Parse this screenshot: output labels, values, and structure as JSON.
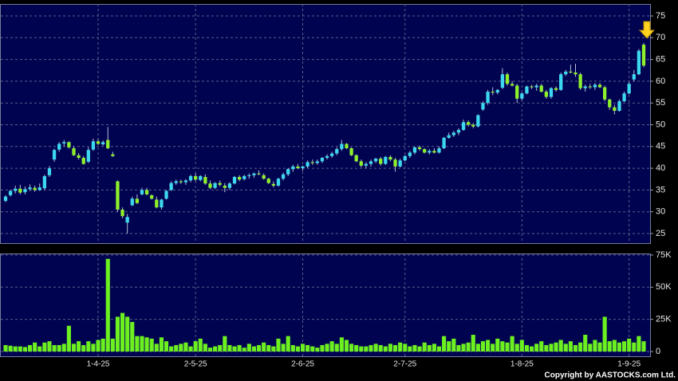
{
  "chart_data": {
    "type": "candlestick",
    "footer": "Copyright by AASTOCKS.com Ltd.",
    "up_color": "#3cd8f0",
    "down_color": "#8ef02a",
    "wick_color": "#b8bcd8",
    "grid": true,
    "categories": [
      null,
      null,
      null,
      null,
      null,
      null,
      null,
      null,
      null,
      null,
      null,
      null,
      null,
      null,
      null,
      null,
      null,
      null,
      null,
      "1-4-25",
      null,
      null,
      null,
      null,
      null,
      null,
      null,
      null,
      null,
      null,
      null,
      null,
      null,
      null,
      null,
      null,
      null,
      null,
      null,
      "2-5-25",
      null,
      null,
      null,
      null,
      null,
      null,
      null,
      null,
      null,
      null,
      null,
      null,
      null,
      null,
      null,
      null,
      null,
      null,
      null,
      null,
      null,
      "2-6-25",
      null,
      null,
      null,
      null,
      null,
      null,
      null,
      null,
      null,
      null,
      null,
      null,
      null,
      null,
      null,
      null,
      null,
      null,
      null,
      null,
      "2-7-25",
      null,
      null,
      null,
      null,
      null,
      null,
      null,
      null,
      null,
      null,
      null,
      null,
      null,
      null,
      null,
      null,
      null,
      null,
      null,
      null,
      null,
      null,
      null,
      "1-8-25",
      null,
      null,
      null,
      null,
      null,
      null,
      null,
      null,
      null,
      null,
      null,
      null,
      null,
      null,
      null,
      null,
      null,
      null,
      null,
      null,
      null,
      "1-9-25",
      null,
      null,
      null
    ],
    "open": [
      32.5,
      33.8,
      34.8,
      35.3,
      34.5,
      35.2,
      35.5,
      35,
      35.4,
      38.4,
      42,
      44.3,
      45.7,
      46,
      44.6,
      43,
      42.4,
      41.5,
      44.3,
      46.2,
      45.5,
      46.5,
      43.2,
      37,
      30.5,
      27.5,
      31.5,
      33,
      34,
      35,
      33.8,
      32.8,
      31,
      33,
      35,
      36.6,
      37,
      36.8,
      37.2,
      38.2,
      37.3,
      38,
      36.5,
      35.5,
      36.6,
      36,
      35.5,
      36.5,
      38,
      37.5,
      38.2,
      38.4,
      38.8,
      38.4,
      37.6,
      36.4,
      36,
      37.6,
      38.6,
      39.8,
      40.4,
      40,
      40.4,
      41.4,
      41.2,
      41.6,
      42.4,
      42.8,
      43.4,
      44.4,
      45.6,
      44.6,
      43,
      41.6,
      40.6,
      41,
      41.6,
      42.2,
      41,
      42.6,
      42,
      40.4,
      41.8,
      42.8,
      43.6,
      44.8,
      44.4,
      43.6,
      44,
      43.6,
      44.6,
      47,
      47.6,
      48.2,
      48.8,
      50.6,
      50,
      49.6,
      53.5,
      55,
      57.6,
      57.4,
      58.5,
      61.6,
      59.4,
      59,
      56,
      57.2,
      58.8,
      58.6,
      59,
      57.6,
      56.4,
      58.4,
      58,
      61.6,
      62.2,
      62,
      61.6,
      58.4,
      58.8,
      58.6,
      59.2,
      58.6,
      55.8,
      54,
      53.2,
      55.4,
      57.2,
      60.4,
      61.6,
      68.4
    ],
    "high": [
      33.8,
      35,
      36,
      36.2,
      35.8,
      36.3,
      36,
      36.5,
      38.5,
      40.5,
      44.5,
      46,
      46.5,
      46.2,
      45,
      43.5,
      42.8,
      44.8,
      46.8,
      46.8,
      46.4,
      49.5,
      43.8,
      37.2,
      31,
      29.5,
      33.5,
      34,
      35.5,
      35.5,
      34,
      33.5,
      33,
      35,
      37,
      37.4,
      37.4,
      37.5,
      38.5,
      38.8,
      38.4,
      38.6,
      37.2,
      36.8,
      37.2,
      36.6,
      36.8,
      38.2,
      38.4,
      38.5,
      38.8,
      39,
      39.5,
      38.8,
      37.8,
      37,
      37.8,
      39,
      40,
      40.8,
      41,
      40.6,
      41.8,
      42,
      42,
      42.6,
      43.2,
      43.8,
      44.8,
      46.5,
      45.8,
      44.8,
      43.2,
      42,
      41.4,
      42,
      42.4,
      42.6,
      42.8,
      43,
      42.4,
      42.2,
      43,
      44,
      45,
      45.2,
      44.6,
      44.4,
      44.6,
      45,
      47.2,
      48.2,
      48.6,
      49.2,
      51.2,
      51,
      50.4,
      52.4,
      55.4,
      58,
      58.6,
      58.2,
      63,
      62,
      60,
      59.4,
      57.4,
      59,
      59.2,
      59.4,
      59.4,
      58,
      58.6,
      58.8,
      62,
      62.6,
      63.8,
      64,
      62,
      59.2,
      59.4,
      59.6,
      59.6,
      59,
      56,
      54.6,
      55.8,
      57.6,
      59.8,
      62.6,
      67.4,
      68.8
    ],
    "low": [
      32.2,
      33.5,
      34.2,
      34,
      34,
      34.8,
      34.6,
      34.8,
      35,
      38,
      41.5,
      43.8,
      45,
      44.5,
      42.8,
      42,
      40.8,
      41.2,
      44,
      45.4,
      45.2,
      44.4,
      42.6,
      30,
      28.5,
      25,
      31.3,
      31.8,
      33.8,
      33.8,
      32.8,
      30.8,
      30.5,
      32.8,
      34.8,
      36.2,
      36.4,
      36.2,
      36.8,
      37,
      37,
      36.2,
      35.2,
      35.2,
      35.8,
      34.5,
      35,
      36.3,
      37,
      37.2,
      37.6,
      37.8,
      38.4,
      37.4,
      36.4,
      35.6,
      35.8,
      37.2,
      38.2,
      39.2,
      39.8,
      39.4,
      40,
      40.8,
      40.8,
      41.2,
      42,
      42.4,
      43,
      44,
      44.4,
      42.8,
      41.4,
      40.2,
      40,
      40.4,
      41.2,
      40.6,
      40.8,
      41.6,
      39.2,
      40.2,
      41.6,
      42.4,
      43.2,
      44,
      43.4,
      43.2,
      43.4,
      43.4,
      44.4,
      46.8,
      47.2,
      47.6,
      48.6,
      49.6,
      49.2,
      49.4,
      53.2,
      54.6,
      56.8,
      57,
      58.2,
      59,
      58.8,
      55,
      55.6,
      57,
      58.2,
      57.8,
      57.4,
      56,
      56,
      57.6,
      57.8,
      61.2,
      61.8,
      61,
      58,
      57.6,
      58.2,
      58,
      58.4,
      55.4,
      53.4,
      52.4,
      53,
      55.2,
      57,
      60,
      61.4,
      63.2
    ],
    "close": [
      33.5,
      34.8,
      35.3,
      34.4,
      35.2,
      35.6,
      35,
      35.6,
      38.2,
      40,
      44.2,
      45.6,
      46,
      44.8,
      43,
      42.4,
      41,
      44.2,
      46.2,
      45.6,
      46,
      44.6,
      42.8,
      30.5,
      29,
      28.8,
      33,
      32,
      35,
      34,
      33,
      31,
      32.8,
      34.8,
      36.6,
      37,
      36.8,
      37.2,
      38.2,
      37.4,
      38.2,
      36.5,
      35.5,
      36.6,
      36.2,
      35.5,
      36.5,
      38,
      37.4,
      38.2,
      38.4,
      38.8,
      38.6,
      37.6,
      36.6,
      36,
      37.6,
      38.6,
      39.8,
      40.4,
      40,
      40.4,
      41.4,
      41.2,
      41.6,
      42.4,
      42.8,
      43.4,
      44.4,
      45.6,
      44.6,
      43,
      41.6,
      40.6,
      41,
      41.6,
      42.2,
      41,
      42.6,
      42,
      40.4,
      41.8,
      42.8,
      43.6,
      44.8,
      44.4,
      43.6,
      44,
      43.6,
      44.6,
      47,
      47.6,
      48.2,
      48.8,
      50.6,
      50,
      49.6,
      52.2,
      55,
      57.6,
      57.4,
      58,
      61.6,
      59.4,
      59,
      56,
      57.2,
      58.8,
      58.6,
      59,
      57.6,
      56.4,
      58.4,
      58,
      61.6,
      62.2,
      62,
      61.6,
      58.4,
      58.8,
      58.6,
      59.2,
      58.6,
      55.8,
      54,
      53.2,
      55.4,
      57.2,
      59.4,
      61.6,
      67,
      63.6
    ],
    "ylim": [
      22.8,
      77.75
    ],
    "yticks": [
      25,
      30,
      35,
      40,
      45,
      50,
      55,
      60,
      65,
      70,
      75
    ],
    "volume": {
      "color": "#6cf020",
      "values": [
        5000,
        4500,
        4000,
        4000,
        3500,
        5000,
        7000,
        4000,
        7000,
        8000,
        5000,
        5000,
        6000,
        20000,
        6000,
        8000,
        5000,
        8000,
        6000,
        9000,
        10000,
        72000,
        10000,
        27000,
        30000,
        27000,
        23000,
        12000,
        12000,
        11000,
        10000,
        6000,
        11000,
        8000,
        4000,
        5000,
        6000,
        7000,
        4000,
        8000,
        10000,
        6000,
        3000,
        4000,
        5000,
        12000,
        5000,
        4000,
        5000,
        3000,
        6000,
        4000,
        5000,
        7000,
        5000,
        4000,
        10000,
        6000,
        12000,
        5000,
        4000,
        6000,
        5000,
        4000,
        3000,
        5000,
        6000,
        8000,
        6000,
        11000,
        9000,
        6000,
        5000,
        4000,
        4000,
        5000,
        6000,
        5000,
        4000,
        6000,
        5000,
        7000,
        6000,
        4000,
        5000,
        4000,
        7000,
        5000,
        6000,
        4000,
        12000,
        8000,
        10000,
        5000,
        6000,
        7000,
        13000,
        6000,
        8000,
        9000,
        6000,
        10000,
        8000,
        7000,
        12000,
        6000,
        9000,
        5000,
        4000,
        6000,
        8000,
        5000,
        6000,
        7000,
        9000,
        6000,
        8000,
        5000,
        7000,
        13000,
        6000,
        9000,
        7000,
        27000,
        8000,
        9000,
        7000,
        8000,
        10000,
        7000,
        12000,
        8000
      ],
      "ylim": [
        -3700,
        76200
      ],
      "yticks": [
        0,
        {
          "value": 25000,
          "label": "25K"
        },
        {
          "value": 50000,
          "label": "50K"
        },
        {
          "value": 75000,
          "label": "75K"
        }
      ]
    }
  }
}
